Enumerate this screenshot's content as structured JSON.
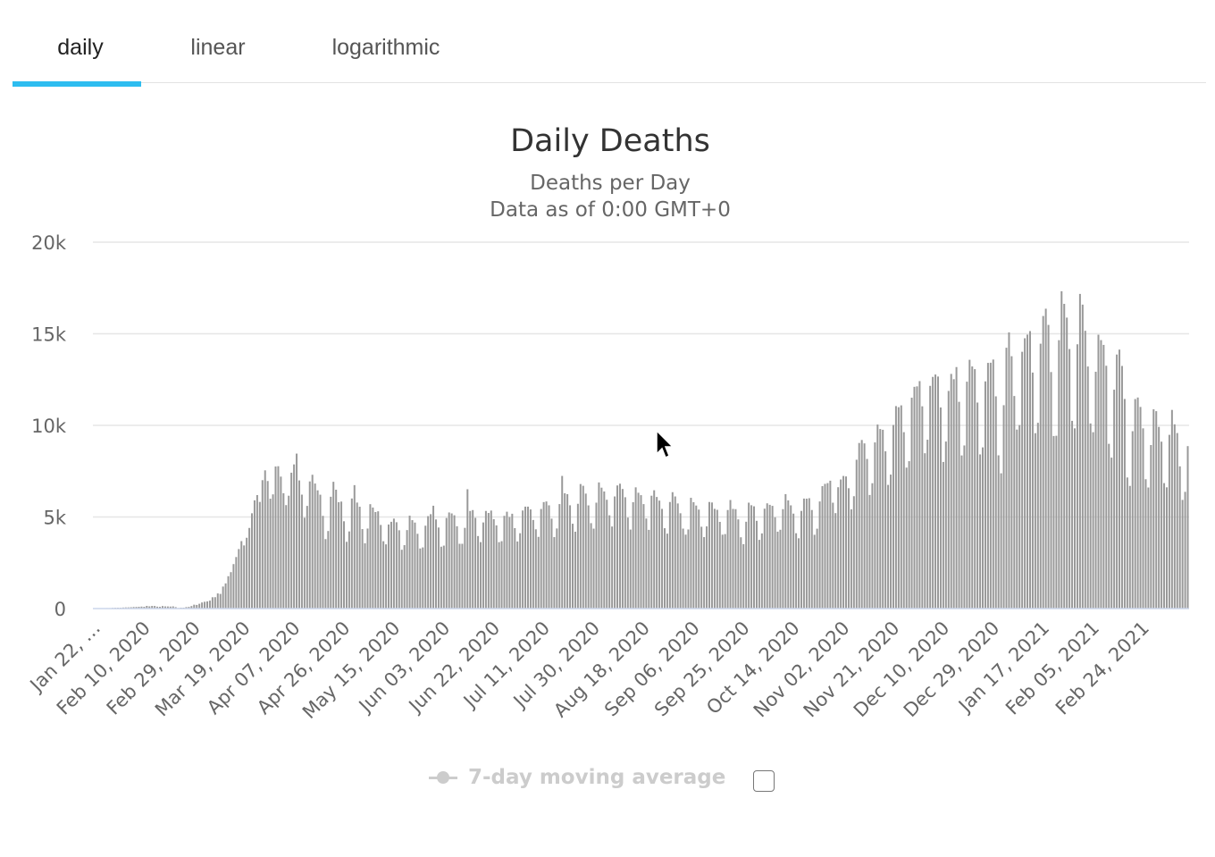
{
  "tabs": [
    {
      "label": "daily"
    },
    {
      "label": "linear"
    },
    {
      "label": "logarithmic"
    }
  ],
  "active_tab": "daily",
  "accent_color": "#2dbdf0",
  "bar_color": "#999999",
  "legend": {
    "label": "7-day moving average",
    "enabled": false
  },
  "chart_data": {
    "type": "bar",
    "title": "Daily Deaths",
    "subtitle": "Deaths per Day",
    "subtitle2": "Data as of 0:00 GMT+0",
    "xlabel": "",
    "ylabel": "",
    "ylim": [
      0,
      20000
    ],
    "yticks": [
      0,
      5000,
      10000,
      15000,
      20000
    ],
    "ytick_labels": [
      "0",
      "5k",
      "10k",
      "15k",
      "20k"
    ],
    "x_start": "Jan 22, 2020",
    "x_end": "Mar 08, 2021",
    "xtick_labels": [
      "Jan 22, …",
      "Feb 10, 2020",
      "Feb 29, 2020",
      "Mar 19, 2020",
      "Apr 07, 2020",
      "Apr 26, 2020",
      "May 15, 2020",
      "Jun 03, 2020",
      "Jun 22, 2020",
      "Jul 11, 2020",
      "Jul 30, 2020",
      "Aug 18, 2020",
      "Sep 06, 2020",
      "Sep 25, 2020",
      "Oct 14, 2020",
      "Nov 02, 2020",
      "Nov 21, 2020",
      "Dec 10, 2020",
      "Dec 29, 2020",
      "Jan 17, 2021",
      "Feb 05, 2021",
      "Feb 24, 2021"
    ],
    "grid": true,
    "legend_position": "bottom-center",
    "series": [
      {
        "name": "Daily Deaths",
        "values": [
          17,
          0,
          8,
          16,
          14,
          26,
          26,
          38,
          43,
          46,
          45,
          57,
          64,
          66,
          73,
          86,
          89,
          97,
          108,
          97,
          146,
          121,
          143,
          142,
          105,
          98,
          136,
          119,
          115,
          109,
          120,
          79,
          30,
          50,
          50,
          80,
          91,
          135,
          211,
          200,
          262,
          333,
          371,
          390,
          433,
          618,
          622,
          827,
          800,
          1202,
          1374,
          1767,
          1989,
          2428,
          2813,
          3250,
          3683,
          3447,
          3866,
          4401,
          5202,
          5910,
          6195,
          5821,
          7010,
          7546,
          6963,
          5996,
          6234,
          7755,
          7770,
          7203,
          6297,
          5648,
          6160,
          7416,
          7869,
          8460,
          6995,
          6219,
          4958,
          5604,
          6941,
          7304,
          6826,
          6454,
          6215,
          5061,
          3792,
          4234,
          6104,
          6921,
          6487,
          5806,
          5840,
          4766,
          3645,
          4211,
          6009,
          6738,
          5787,
          5559,
          4339,
          3564,
          4369,
          5698,
          5515,
          5269,
          5309,
          4566,
          3676,
          3505,
          4589,
          4736,
          4910,
          4713,
          4275,
          3211,
          3462,
          4285,
          5071,
          4827,
          4695,
          4082,
          3279,
          3338,
          4523,
          5047,
          5153,
          5613,
          4865,
          4424,
          3377,
          3436,
          4946,
          5246,
          5194,
          5092,
          4494,
          3536,
          3537,
          4406,
          6514,
          5328,
          5377,
          4952,
          3959,
          3628,
          4701,
          5329,
          5220,
          5350,
          4879,
          4542,
          3626,
          3679,
          5062,
          5287,
          4996,
          5176,
          4390,
          3661,
          4113,
          5354,
          5565,
          5564,
          5412,
          4836,
          4328,
          3914,
          5436,
          5812,
          5847,
          5636,
          4908,
          3901,
          4372,
          5703,
          7241,
          6293,
          6245,
          5638,
          4631,
          4196,
          5719,
          6798,
          6702,
          6276,
          5632,
          4664,
          4364,
          5781,
          6886,
          6600,
          6392,
          5940,
          5091,
          4479,
          6121,
          6721,
          6816,
          6528,
          6078,
          4967,
          4312,
          5806,
          6617,
          6323,
          6191,
          5703,
          4914,
          4297,
          6160,
          6459,
          6092,
          5893,
          5442,
          4387,
          4091,
          5817,
          6353,
          6121,
          5738,
          5203,
          4366,
          4035,
          4318,
          6047,
          5808,
          5624,
          5403,
          4467,
          3901,
          4487,
          5818,
          5791,
          5445,
          5390,
          4733,
          4033,
          4066,
          5379,
          5926,
          5441,
          5427,
          4869,
          3891,
          3516,
          4740,
          5781,
          5641,
          5582,
          4790,
          3751,
          4102,
          5452,
          5745,
          5663,
          5606,
          4983,
          4198,
          4302,
          5428,
          6248,
          5907,
          5635,
          5183,
          4112,
          3838,
          5331,
          6005,
          6000,
          6025,
          5381,
          4028,
          4361,
          5847,
          6683,
          6808,
          6849,
          6980,
          5779,
          5210,
          6624,
          7047,
          7238,
          7212,
          6570,
          5418,
          6133,
          8125,
          9039,
          9203,
          9016,
          8168,
          6201,
          6842,
          9070,
          10046,
          9801,
          9760,
          8584,
          6751,
          7314,
          10021,
          11053,
          10992,
          11092,
          9630,
          7695,
          8046,
          11510,
          12105,
          12130,
          12416,
          11041,
          8479,
          9217,
          12157,
          12647,
          12777,
          12666,
          10977,
          8004,
          9118,
          11880,
          12810,
          12521,
          13183,
          11286,
          8359,
          8904,
          12386,
          13580,
          13216,
          13069,
          11245,
          8416,
          8800,
          12401,
          13411,
          13420,
          13594,
          11586,
          8366,
          7385,
          11102,
          14238,
          15076,
          13775,
          11604,
          9771,
          10014,
          14018,
          14756,
          14954,
          15147,
          12883,
          9574,
          10141,
          14458,
          15971,
          16369,
          15484,
          12911,
          9420,
          9433,
          14651,
          17323,
          16632,
          15883,
          14166,
          10247,
          9838,
          14426,
          17176,
          16591,
          15164,
          13214,
          10105,
          9628,
          12926,
          14949,
          14654,
          14393,
          13254,
          8993,
          8239,
          11949,
          13868,
          14136,
          13244,
          11441,
          7156,
          6697,
          9682,
          11437,
          11521,
          11006,
          9838,
          7060,
          6609,
          8927,
          10877,
          10775,
          9917,
          9111,
          6849,
          6618,
          9483,
          10844,
          10058,
          9582,
          7763,
          5931,
          6372,
          8868
        ]
      }
    ]
  },
  "icons": {
    "legend_marker": "line-dot-icon",
    "cursor": "mouse-pointer-icon"
  }
}
